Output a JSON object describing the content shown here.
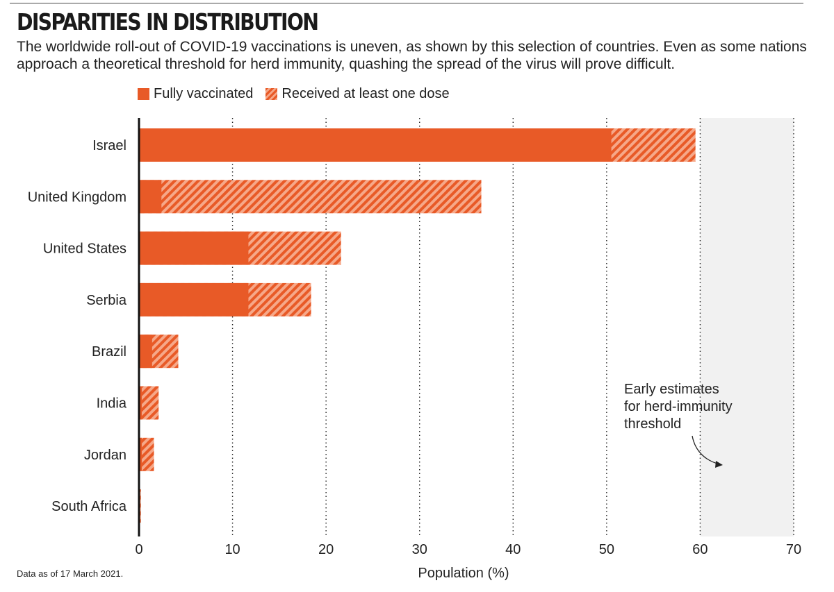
{
  "title": "DISPARITIES IN DISTRIBUTION",
  "subtitle": "The worldwide roll-out of COVID-19 vaccinations is uneven, as shown by this selection of countries. Even as some nations approach a theoretical threshold for herd immunity, quashing the spread of the virus will prove difficult.",
  "legend": {
    "fully": "Fully vaccinated",
    "one_dose": "Received at least one dose"
  },
  "source": "Data as of 17 March 2021.",
  "colors": {
    "accent": "#e85a27",
    "hatch_light": "#f6a889",
    "threshold_band": "#f1f1f1"
  },
  "chart_data": {
    "type": "bar",
    "orientation": "horizontal",
    "stacked": "overlay",
    "categories": [
      "Israel",
      "United Kingdom",
      "United States",
      "Serbia",
      "Brazil",
      "India",
      "Jordan",
      "South Africa"
    ],
    "series": [
      {
        "name": "Fully vaccinated",
        "values": [
          50.5,
          2.4,
          11.7,
          11.7,
          1.4,
          0.3,
          0.3,
          0.1
        ]
      },
      {
        "name": "Received at least one dose",
        "values": [
          59.5,
          36.6,
          21.6,
          18.4,
          4.2,
          2.1,
          1.6,
          0.2
        ]
      }
    ],
    "xlabel": "Population (%)",
    "ylabel": "",
    "xlim": [
      0,
      70
    ],
    "xticks": [
      0,
      10,
      20,
      30,
      40,
      50,
      60,
      70
    ],
    "grid": "vertical dotted",
    "legend_position": "top-left",
    "threshold_band": {
      "range": [
        60,
        70
      ],
      "label": [
        "Early estimates",
        "for herd-immunity",
        "threshold"
      ]
    }
  }
}
